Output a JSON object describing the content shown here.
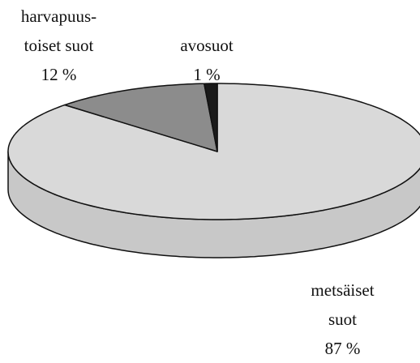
{
  "chart_data": {
    "type": "pie3d",
    "categories": [
      "metsäiset\nsuot",
      "harvapuus-\ntoiset suot",
      "avosuot"
    ],
    "values": [
      87,
      12,
      1
    ],
    "value_labels": [
      "87 %",
      "12 %",
      "1 %"
    ],
    "colors": [
      "#d9d9d9",
      "#8c8c8c",
      "#1a1a1a"
    ]
  }
}
